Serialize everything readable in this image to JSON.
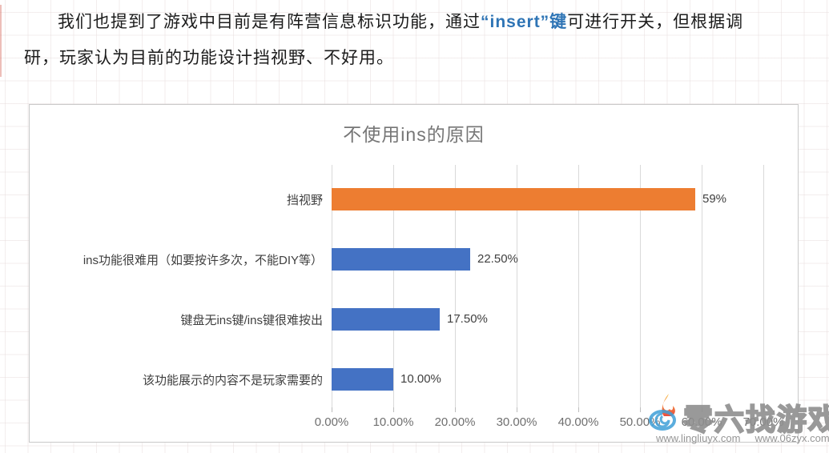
{
  "paragraph": {
    "line1_pre": "我们也提到了游戏中目前是有阵营信息标识功能，通过",
    "line1_highlight": "“insert”键",
    "line1_post": "可进行开关，但根据调",
    "line2": "研，玩家认为目前的功能设计挡视野、不好用。",
    "highlight_color": "#2E74B5"
  },
  "chart_data": {
    "type": "bar",
    "orientation": "horizontal",
    "title": "不使用ins的原因",
    "categories": [
      "挡视野",
      "ins功能很难用（如要按许多次，不能DIY等）",
      "键盘无ins键/ins键很难按出",
      "该功能展示的内容不是玩家需要的"
    ],
    "values": [
      59,
      22.5,
      17.5,
      10
    ],
    "value_labels": [
      "59%",
      "22.50%",
      "17.50%",
      "10.00%"
    ],
    "bar_colors": [
      "#ED7D31",
      "#4472C4",
      "#4472C4",
      "#4472C4"
    ],
    "x_tick_labels": [
      "0.00%",
      "10.00%",
      "20.00%",
      "30.00%",
      "40.00%",
      "50.00%",
      "60.00%",
      "70.00%"
    ],
    "x_tick_values": [
      0,
      10,
      20,
      30,
      40,
      50,
      60,
      70
    ],
    "xlim": [
      0,
      71
    ],
    "grid": true,
    "legend": "none",
    "colors": {
      "accent_orange": "#ED7D31",
      "accent_blue": "#4472C4",
      "title_text": "#767676",
      "axis_text": "#6f6f6f",
      "label_text": "#3f3f3f",
      "gridline": "#d9d9d9"
    }
  },
  "watermark": {
    "brand": "零六找游戏",
    "urls": [
      "www.lingliuyx.com",
      "www.06zyx.com"
    ]
  }
}
